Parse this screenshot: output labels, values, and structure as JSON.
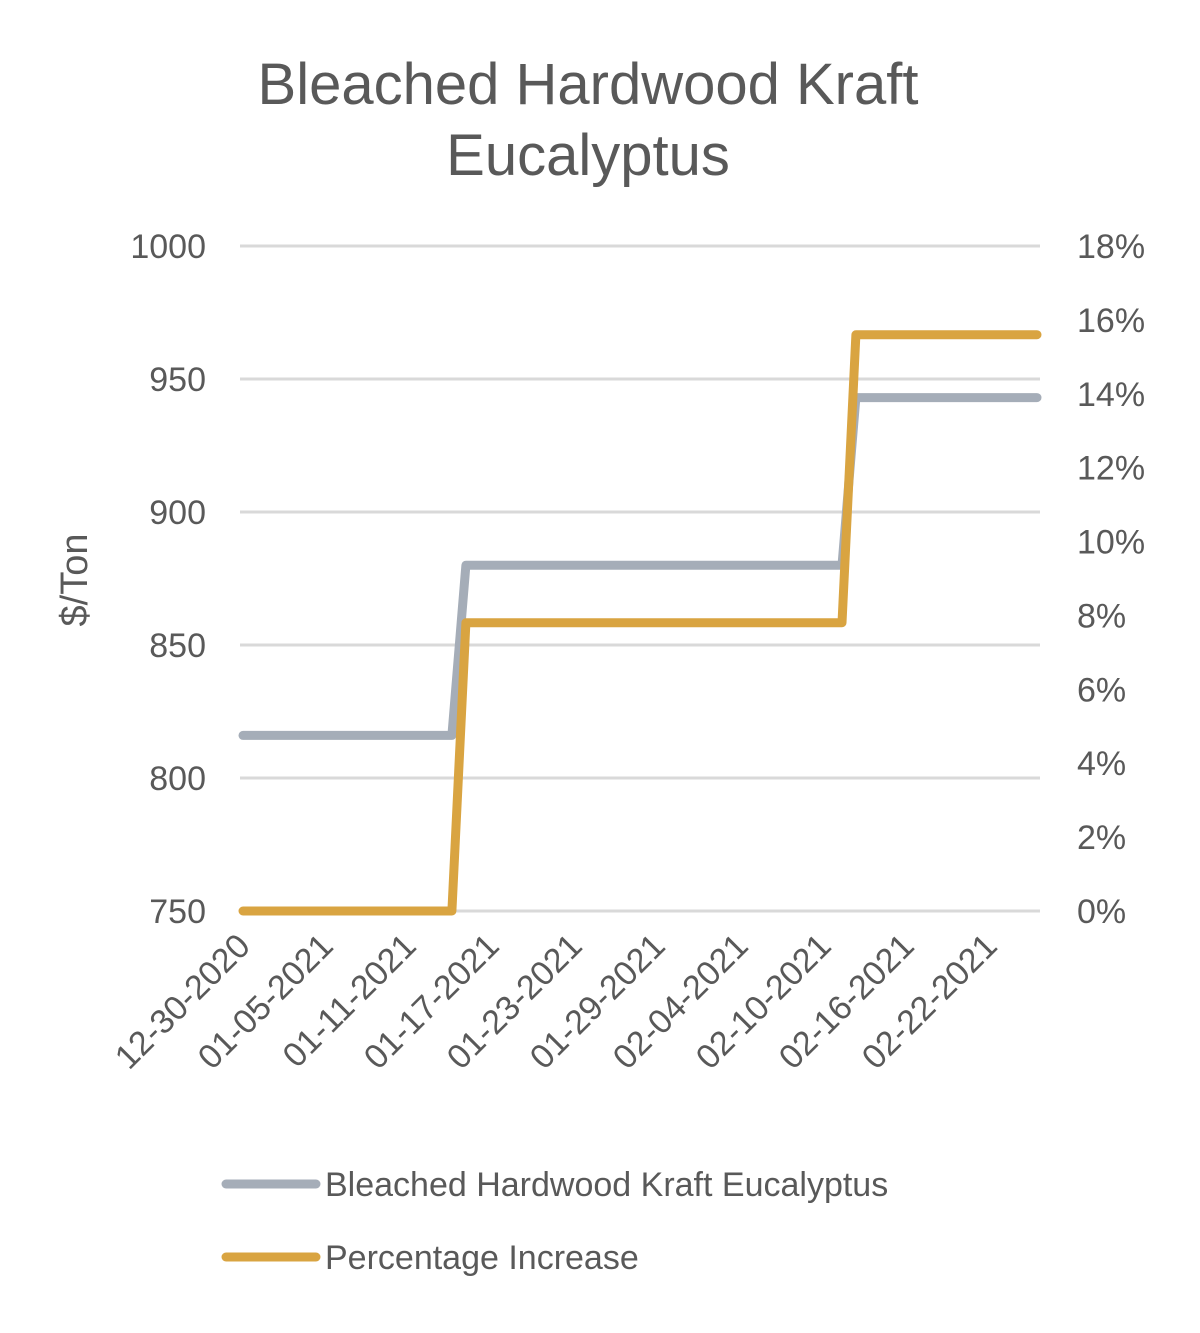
{
  "chart_data": {
    "type": "line",
    "title": "Bleached Hardwood Kraft Eucalyptus",
    "title_lines": [
      "Bleached Hardwood Kraft",
      "Eucalyptus"
    ],
    "ylabel": "$/Ton",
    "ylim": [
      750,
      1000
    ],
    "yticks": [
      "1000",
      "950",
      "900",
      "850",
      "800",
      "750"
    ],
    "y2lim": [
      0,
      18
    ],
    "y2ticks": [
      "18%",
      "16%",
      "14%",
      "12%",
      "10%",
      "8%",
      "6%",
      "4%",
      "2%",
      "0%"
    ],
    "x_tick_labels": [
      "12-30-2020",
      "01-05-2021",
      "01-11-2021",
      "01-17-2021",
      "01-23-2021",
      "01-29-2021",
      "02-04-2021",
      "02-10-2021",
      "02-16-2021",
      "02-22-2021"
    ],
    "x_days": [
      0,
      57
    ],
    "series": [
      {
        "name": "Bleached Hardwood Kraft Eucalyptus",
        "axis": "left",
        "color": "#A5ADB8",
        "points": [
          [
            0,
            816
          ],
          [
            15,
            816
          ],
          [
            16,
            880
          ],
          [
            43,
            880
          ],
          [
            44,
            943
          ],
          [
            57,
            943
          ]
        ]
      },
      {
        "name": "Percentage Increase",
        "axis": "right",
        "color": "#D9A441",
        "points": [
          [
            0,
            0
          ],
          [
            15,
            0
          ],
          [
            16,
            7.8
          ],
          [
            43,
            7.8
          ],
          [
            44,
            15.6
          ],
          [
            57,
            15.6
          ]
        ]
      }
    ],
    "legend_position": "bottom",
    "grid": true
  }
}
